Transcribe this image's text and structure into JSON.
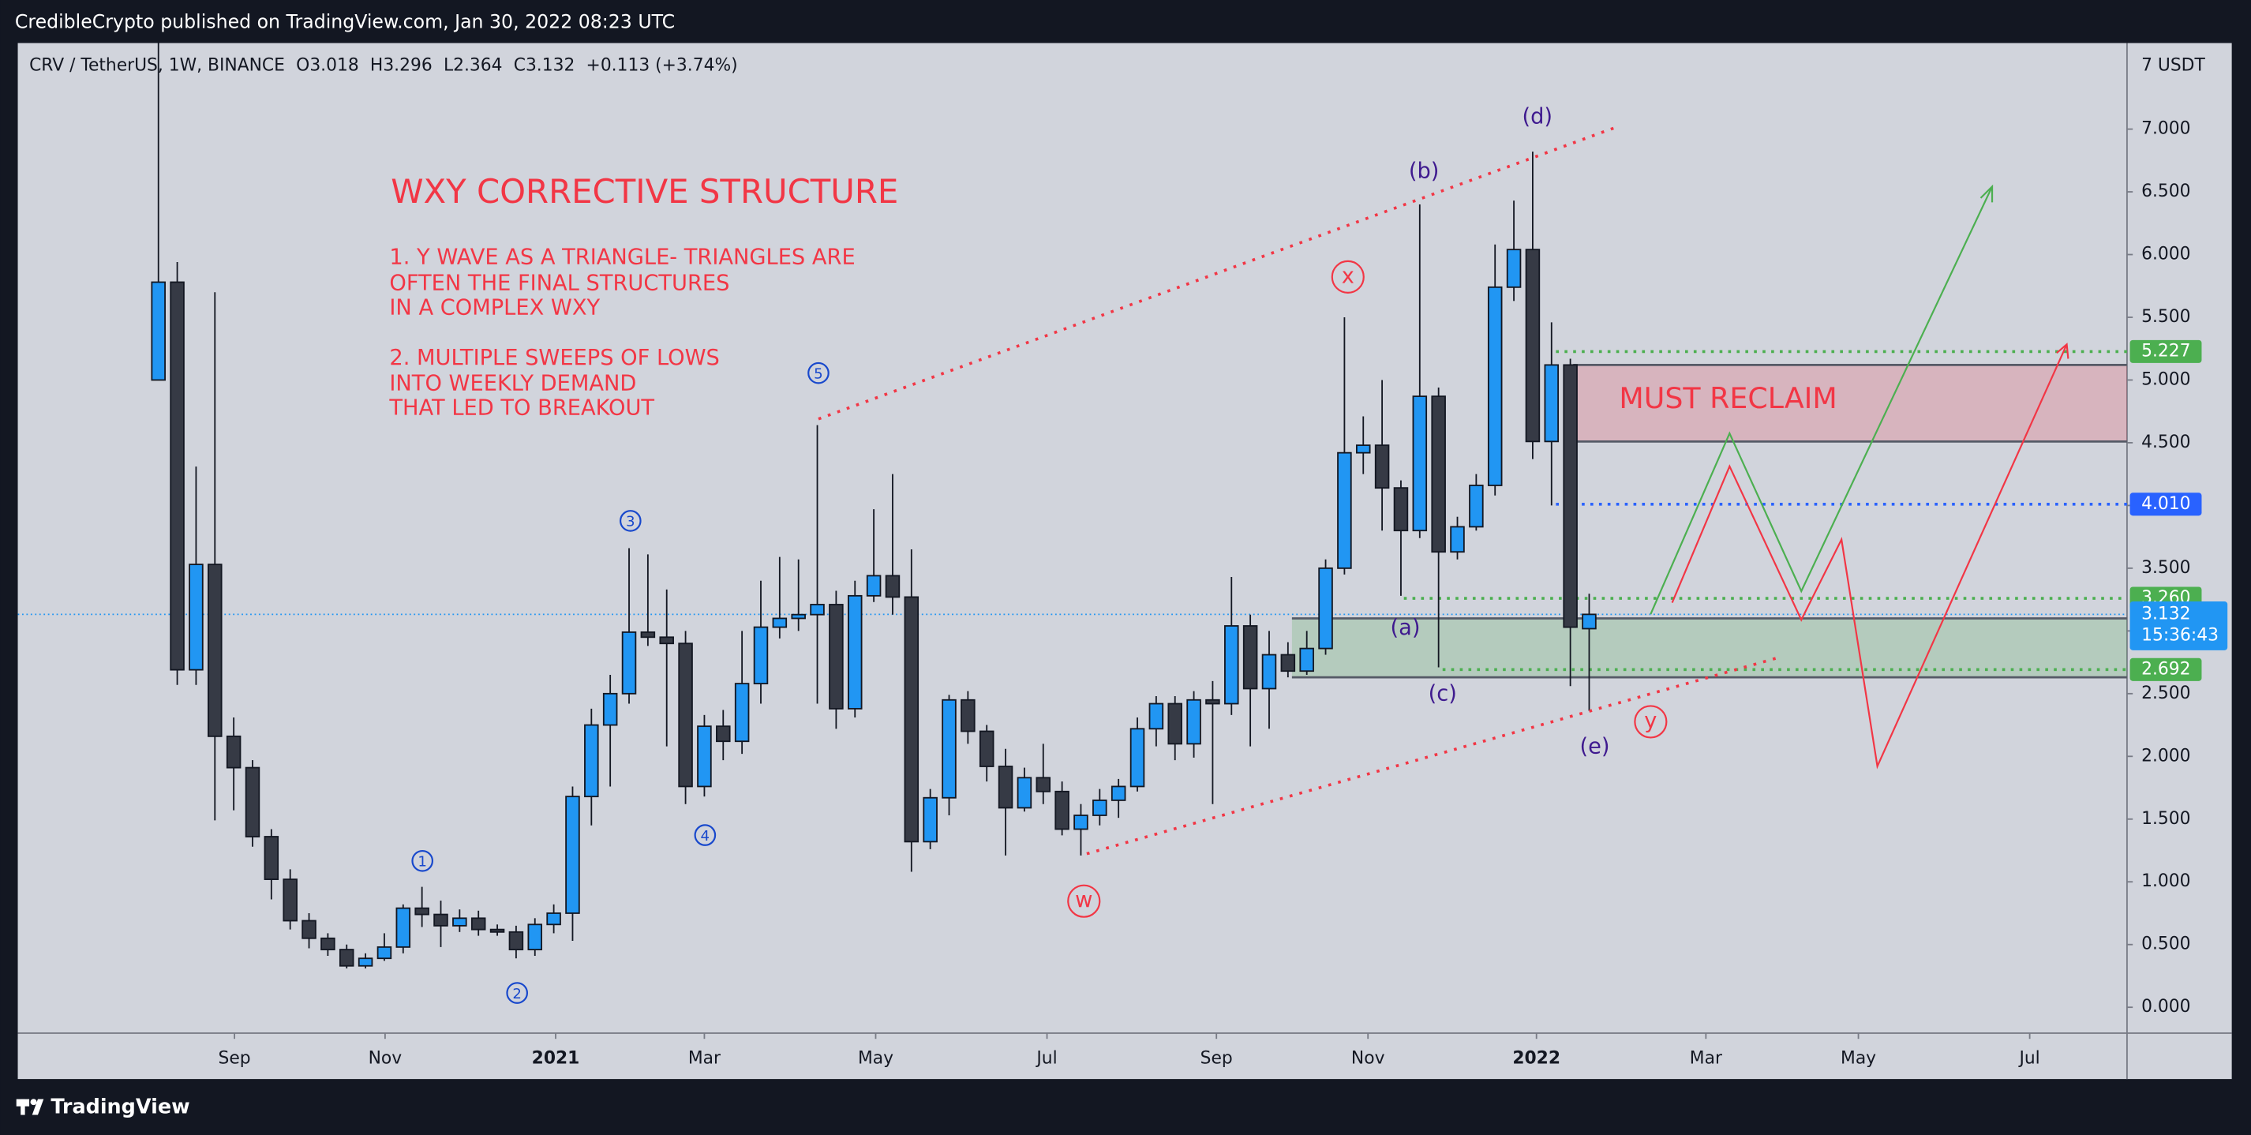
{
  "header": {
    "publisher": "CredibleCrypto published on TradingView.com, Jan 30, 2022 08:23 UTC"
  },
  "footer": {
    "brand": "TradingView"
  },
  "chart_data": {
    "type": "candlestick",
    "title": "CRV / TetherUS, 1W, BINANCE",
    "legend": {
      "open": "O",
      "high": "H",
      "low": "L",
      "close": "C",
      "change": "+0.113 (+3.74%)"
    },
    "up_color": "#2196f3",
    "down_color": "#363a45",
    "open": [
      5.0,
      5.78,
      2.69,
      3.53,
      2.16,
      1.91,
      1.36,
      1.02,
      0.69,
      0.55,
      0.46,
      0.33,
      0.39,
      0.48,
      0.79,
      0.74,
      0.65,
      0.71,
      0.62,
      0.6,
      0.46,
      0.66,
      0.75,
      1.68,
      2.25,
      2.5,
      2.99,
      2.95,
      2.9,
      1.76,
      2.24,
      2.12,
      2.58,
      3.03,
      3.1,
      3.13,
      3.21,
      2.38,
      3.28,
      3.44,
      3.27,
      1.32,
      1.67,
      2.45,
      2.2,
      1.92,
      1.59,
      1.83,
      1.72,
      1.42,
      1.53,
      1.65,
      1.76,
      2.22,
      2.42,
      2.1,
      2.45,
      2.42,
      3.04,
      2.54,
      2.81,
      2.68,
      2.86,
      3.5,
      4.42,
      4.48,
      4.14,
      3.8,
      4.87,
      3.63,
      3.83,
      4.16,
      5.74,
      6.04,
      4.51,
      5.12,
      3.018
    ],
    "high": [
      15,
      5.94,
      4.31,
      5.7,
      2.31,
      1.97,
      1.42,
      1.1,
      0.75,
      0.59,
      0.5,
      0.43,
      0.59,
      0.82,
      0.96,
      0.85,
      0.78,
      0.77,
      0.66,
      0.65,
      0.71,
      0.82,
      1.76,
      2.38,
      2.65,
      3.66,
      3.61,
      3.33,
      3.0,
      2.33,
      2.37,
      3.0,
      3.4,
      3.59,
      3.57,
      4.64,
      3.32,
      3.4,
      3.97,
      4.25,
      3.65,
      1.74,
      2.49,
      2.52,
      2.25,
      2.06,
      1.91,
      2.1,
      1.8,
      1.62,
      1.74,
      1.82,
      2.31,
      2.48,
      2.48,
      2.52,
      2.6,
      3.43,
      3.13,
      3.0,
      2.91,
      3.0,
      3.57,
      5.5,
      4.71,
      5.0,
      4.2,
      6.4,
      4.94,
      3.91,
      4.25,
      6.08,
      6.43,
      6.82,
      5.46,
      5.17,
      3.296
    ],
    "low": [
      5.0,
      2.57,
      2.57,
      1.49,
      1.57,
      1.28,
      0.86,
      0.62,
      0.47,
      0.41,
      0.31,
      0.31,
      0.37,
      0.43,
      0.64,
      0.48,
      0.6,
      0.57,
      0.57,
      0.39,
      0.41,
      0.59,
      0.53,
      1.45,
      1.76,
      2.42,
      2.88,
      2.08,
      1.62,
      1.68,
      1.97,
      2.02,
      2.42,
      2.94,
      3.0,
      2.42,
      2.22,
      2.31,
      3.23,
      3.13,
      1.08,
      1.26,
      1.53,
      2.1,
      1.8,
      1.21,
      1.56,
      1.62,
      1.37,
      1.21,
      1.45,
      1.51,
      1.72,
      2.08,
      1.97,
      1.99,
      1.62,
      2.33,
      2.08,
      2.22,
      2.63,
      2.65,
      2.81,
      3.45,
      4.25,
      3.8,
      3.28,
      3.74,
      2.71,
      3.57,
      3.8,
      4.08,
      5.63,
      4.37,
      4.0,
      2.56,
      2.364
    ],
    "close": [
      5.78,
      2.69,
      3.53,
      2.16,
      1.91,
      1.36,
      1.02,
      0.69,
      0.55,
      0.46,
      0.33,
      0.39,
      0.48,
      0.79,
      0.74,
      0.65,
      0.71,
      0.62,
      0.6,
      0.46,
      0.66,
      0.75,
      1.68,
      2.25,
      2.5,
      2.99,
      2.95,
      2.9,
      1.76,
      2.24,
      2.12,
      2.58,
      3.03,
      3.1,
      3.13,
      3.21,
      2.38,
      3.28,
      3.44,
      3.27,
      1.32,
      1.67,
      2.45,
      2.2,
      1.92,
      1.59,
      1.83,
      1.72,
      1.42,
      1.53,
      1.65,
      1.76,
      2.22,
      2.42,
      2.1,
      2.45,
      2.42,
      3.04,
      2.54,
      2.81,
      2.68,
      2.86,
      3.5,
      4.42,
      4.48,
      4.14,
      3.8,
      4.87,
      3.63,
      3.83,
      4.16,
      5.74,
      6.04,
      4.51,
      5.12,
      3.03,
      3.132
    ],
    "xlim": [
      -7.47,
      104.57
    ],
    "xticks": [
      {
        "value": 4.04,
        "label": "Sep"
      },
      {
        "value": 12.04,
        "label": "Nov"
      },
      {
        "value": 21.1,
        "label": "2021"
      },
      {
        "value": 29.0,
        "label": "Mar"
      },
      {
        "value": 38.1,
        "label": "May"
      },
      {
        "value": 47.2,
        "label": "Jul"
      },
      {
        "value": 56.2,
        "label": "Sep"
      },
      {
        "value": 64.25,
        "label": "Nov"
      },
      {
        "value": 73.2,
        "label": "2022"
      },
      {
        "value": 82.2,
        "label": "Mar"
      },
      {
        "value": 90.3,
        "label": "May"
      },
      {
        "value": 99.4,
        "label": "Jul"
      }
    ],
    "ylim": [
      -0.206,
      7.686
    ],
    "yticks": [
      {
        "value": 0,
        "label": "0.000"
      },
      {
        "value": 0.5,
        "label": "0.500"
      },
      {
        "value": 1,
        "label": "1.000"
      },
      {
        "value": 1.5,
        "label": "1.500"
      },
      {
        "value": 2,
        "label": "2.000"
      },
      {
        "value": 2.5,
        "label": "2.500"
      },
      {
        "value": 3,
        "label": "3.000"
      },
      {
        "value": 3.5,
        "label": "3.500"
      },
      {
        "value": 4,
        "label": "4.000"
      },
      {
        "value": 4.5,
        "label": "4.500"
      },
      {
        "value": 5,
        "label": "5.000"
      },
      {
        "value": 5.5,
        "label": "5.500"
      },
      {
        "value": 6,
        "label": "6.000"
      },
      {
        "value": 6.5,
        "label": "6.500"
      },
      {
        "value": 7,
        "label": "7.000"
      }
    ],
    "y_unit_label": "7 USDT",
    "price_lines": [
      {
        "value": 5.227,
        "label": "5.227",
        "color": "#4caf50"
      },
      {
        "value": 4.01,
        "label": "4.010",
        "color": "#2962ff"
      },
      {
        "value": 3.26,
        "label": "3.260",
        "color": "#4caf50"
      },
      {
        "value": 2.692,
        "label": "2.692",
        "color": "#4caf50"
      }
    ],
    "last_price": {
      "value": 3.132,
      "label": "3.132",
      "countdown": "15:36:43",
      "color": "#2196f3"
    },
    "zones": [
      {
        "label": "MUST RECLAIM",
        "from": 4.51,
        "to": 5.12,
        "color": "rgba(242,54,69,0.2)"
      },
      {
        "from": 2.63,
        "to": 3.1,
        "color": "rgba(76,175,80,0.22)"
      }
    ],
    "annotations": {
      "title": "WXY CORRECTIVE STRUCTURE",
      "notes": [
        [
          "1. Y WAVE AS A TRIANGLE- TRIANGLES ARE",
          "OFTEN THE FINAL STRUCTURES",
          "IN A COMPLEX WXY"
        ],
        [
          "2. MULTIPLE SWEEPS OF LOWS",
          "INTO WEEKLY DEMAND",
          "THAT LED TO BREAKOUT"
        ]
      ],
      "circled_numbers": [
        "1",
        "2",
        "3",
        "4",
        "5"
      ],
      "circled_letters": [
        "w",
        "x",
        "y"
      ],
      "triangle_legs": [
        "(a)",
        "(b)",
        "(c)",
        "(d)",
        "(e)"
      ]
    }
  }
}
